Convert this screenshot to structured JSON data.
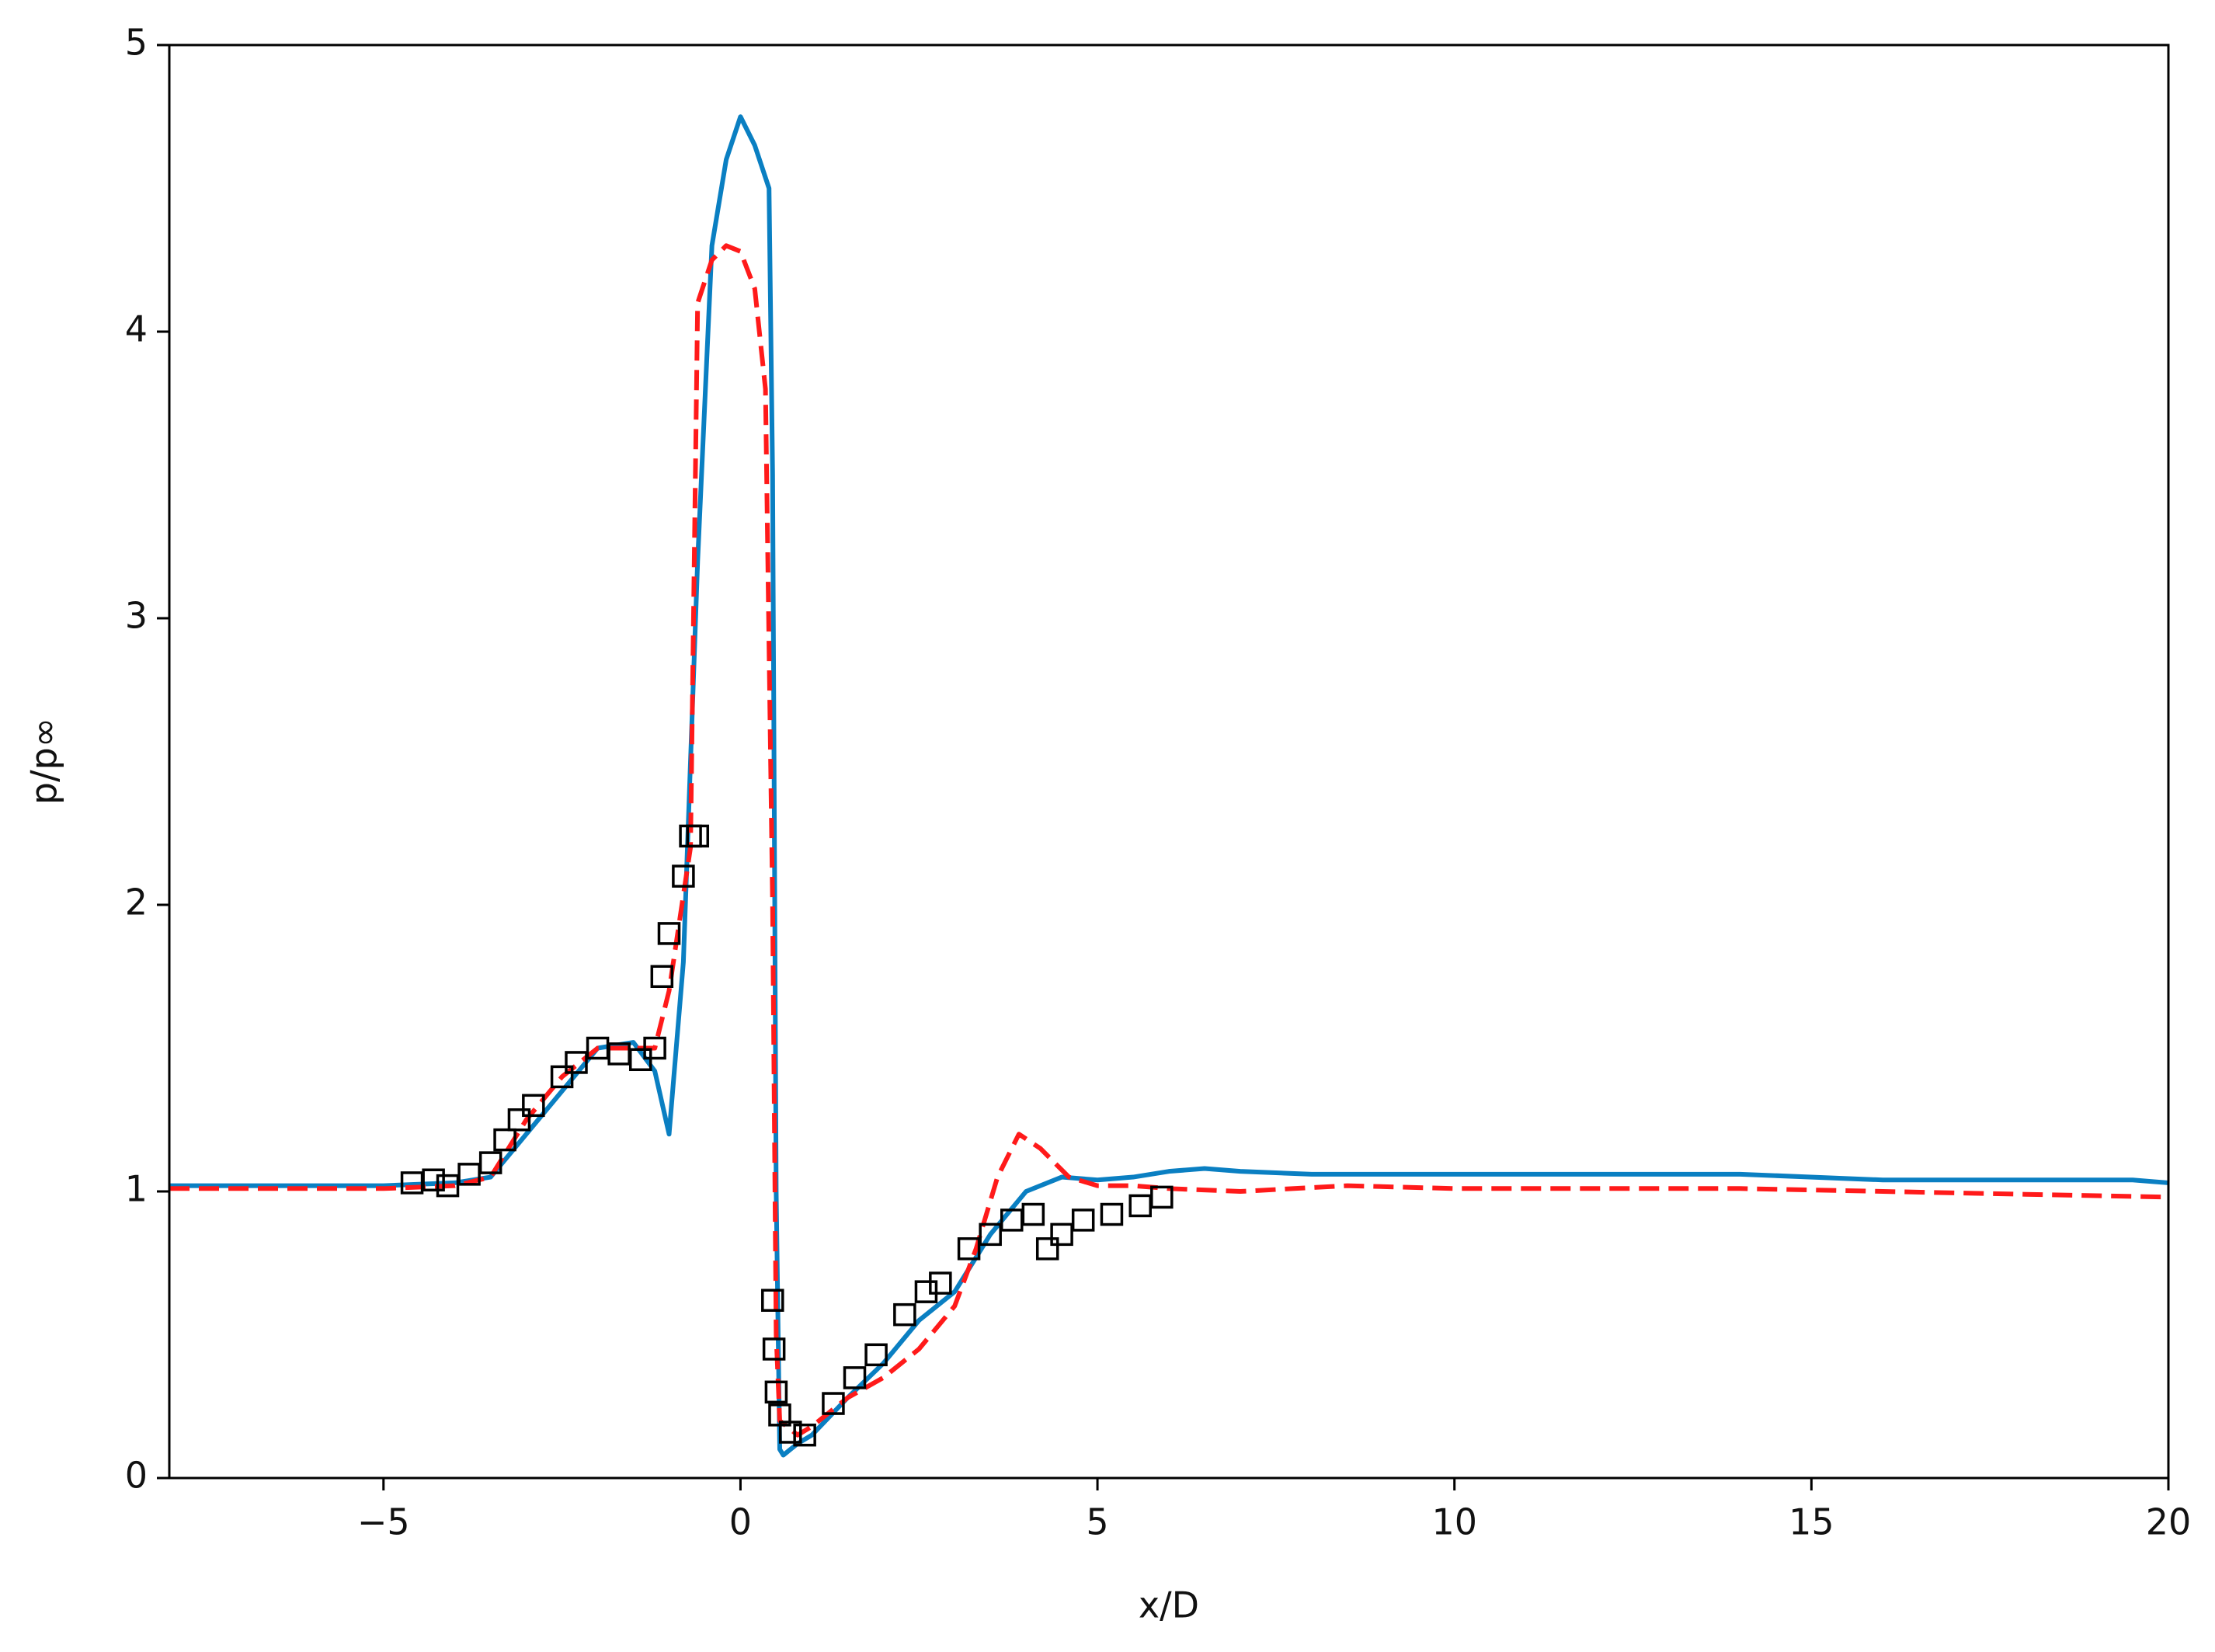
{
  "chart_data": {
    "type": "line",
    "xlabel": "x/D",
    "ylabel": "p/p∞",
    "xlim": [
      -8,
      20
    ],
    "ylim": [
      0,
      5
    ],
    "xticks": [
      {
        "value": -5,
        "label": "−5"
      },
      0,
      5,
      10,
      15,
      20
    ],
    "yticks": [
      0,
      1,
      2,
      3,
      4,
      5
    ],
    "series": [
      {
        "color": "#0a7fc2",
        "style": "solid",
        "x": [
          -8,
          -5,
          -4,
          -3.5,
          -3,
          -2.5,
          -2,
          -1.5,
          -1.2,
          -1.0,
          -0.8,
          -0.6,
          -0.4,
          -0.2,
          0,
          0.2,
          0.4,
          0.45,
          0.5,
          0.55,
          0.6,
          0.8,
          1.0,
          1.5,
          2,
          2.5,
          3,
          3.5,
          4,
          4.5,
          5,
          5.5,
          6,
          6.5,
          7,
          8,
          10,
          12,
          14,
          16,
          18,
          19.5,
          20
        ],
        "values": [
          1.02,
          1.02,
          1.03,
          1.05,
          1.2,
          1.35,
          1.5,
          1.52,
          1.42,
          1.2,
          1.8,
          3.2,
          4.3,
          4.6,
          4.75,
          4.65,
          4.5,
          3.5,
          1.0,
          0.1,
          0.08,
          0.12,
          0.15,
          0.28,
          0.4,
          0.55,
          0.65,
          0.85,
          1.0,
          1.05,
          1.04,
          1.05,
          1.07,
          1.08,
          1.07,
          1.06,
          1.06,
          1.06,
          1.06,
          1.04,
          1.04,
          1.04,
          1.03
        ]
      },
      {
        "color": "#ff1a1a",
        "style": "dashed",
        "x": [
          -8,
          -5,
          -4,
          -3.5,
          -3,
          -2.5,
          -2,
          -1.5,
          -1.2,
          -1,
          -0.7,
          -0.6,
          -0.4,
          -0.2,
          0,
          0.2,
          0.35,
          0.45,
          0.5,
          0.55,
          0.8,
          1.0,
          1.5,
          2,
          2.5,
          3,
          3.3,
          3.6,
          3.9,
          4.2,
          4.6,
          5,
          5.5,
          6,
          7,
          8.5,
          10,
          12,
          14,
          16,
          18,
          20
        ],
        "values": [
          1.01,
          1.01,
          1.02,
          1.05,
          1.25,
          1.4,
          1.5,
          1.5,
          1.5,
          1.7,
          2.2,
          4.1,
          4.25,
          4.3,
          4.28,
          4.15,
          3.8,
          2.0,
          0.5,
          0.2,
          0.15,
          0.18,
          0.28,
          0.35,
          0.45,
          0.6,
          0.8,
          1.05,
          1.2,
          1.15,
          1.05,
          1.02,
          1.02,
          1.01,
          1.0,
          1.02,
          1.01,
          1.01,
          1.01,
          1.0,
          0.99,
          0.98
        ]
      },
      {
        "color": "#000000",
        "style": "markers",
        "x": [
          -4.6,
          -4.3,
          -4.1,
          -3.8,
          -3.5,
          -3.3,
          -3.1,
          -2.9,
          -2.5,
          -2.3,
          -2,
          -1.7,
          -1.4,
          -1.2,
          -1.1,
          -1,
          -0.8,
          -0.7,
          -0.6,
          0.45,
          0.47,
          0.5,
          0.55,
          0.7,
          0.9,
          1.3,
          1.6,
          1.9,
          2.3,
          2.6,
          2.8,
          3.2,
          3.5,
          3.8,
          4.1,
          4.3,
          4.5,
          4.8,
          5.2,
          5.6,
          5.9
        ],
        "values": [
          1.03,
          1.04,
          1.02,
          1.06,
          1.1,
          1.18,
          1.25,
          1.3,
          1.4,
          1.45,
          1.5,
          1.48,
          1.46,
          1.5,
          1.75,
          1.9,
          2.1,
          2.24,
          2.24,
          0.62,
          0.45,
          0.3,
          0.22,
          0.16,
          0.15,
          0.26,
          0.35,
          0.43,
          0.57,
          0.65,
          0.68,
          0.8,
          0.85,
          0.9,
          0.92,
          0.8,
          0.85,
          0.9,
          0.92,
          0.95,
          0.98
        ]
      }
    ]
  }
}
